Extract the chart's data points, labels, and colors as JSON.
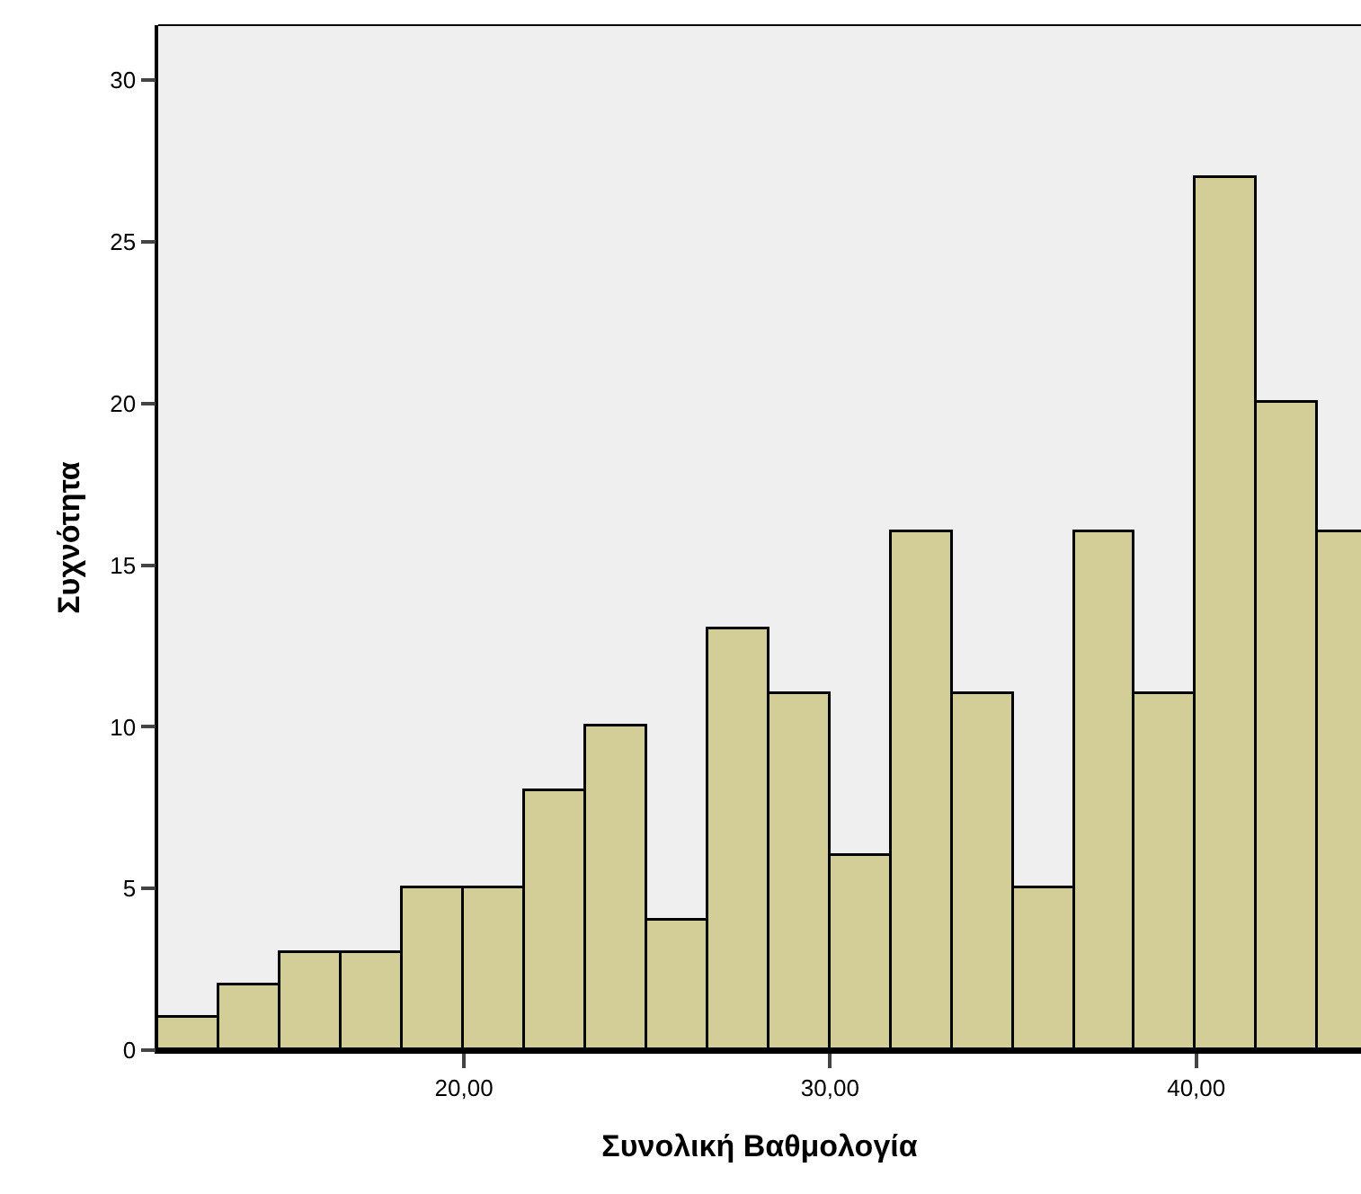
{
  "chart_data": {
    "type": "histogram",
    "xlabel": "Συνολική Βαθμολογία",
    "ylabel": "Συχνότητα",
    "bins": [
      11.67,
      13.33,
      15,
      16.67,
      18.33,
      20,
      21.67,
      23.33,
      25,
      26.67,
      28.33,
      30,
      31.67,
      33.33,
      35,
      36.67,
      38.33,
      40,
      41.67,
      43.33,
      45
    ],
    "values": [
      1,
      2,
      3,
      3,
      5,
      5,
      8,
      10,
      4,
      13,
      11,
      6,
      16,
      11,
      5,
      16,
      11,
      27,
      20,
      16
    ],
    "color": "#d3ce97",
    "xlim": [
      11.65,
      44.5
    ],
    "xticks": [
      {
        "value": 20,
        "label": "20,00"
      },
      {
        "value": 30,
        "label": "30,00"
      },
      {
        "value": 40,
        "label": "40,00"
      }
    ],
    "ylim": [
      0,
      31.7
    ],
    "yticks": [
      0,
      5,
      10,
      15,
      20,
      25,
      30
    ],
    "grid": false
  }
}
